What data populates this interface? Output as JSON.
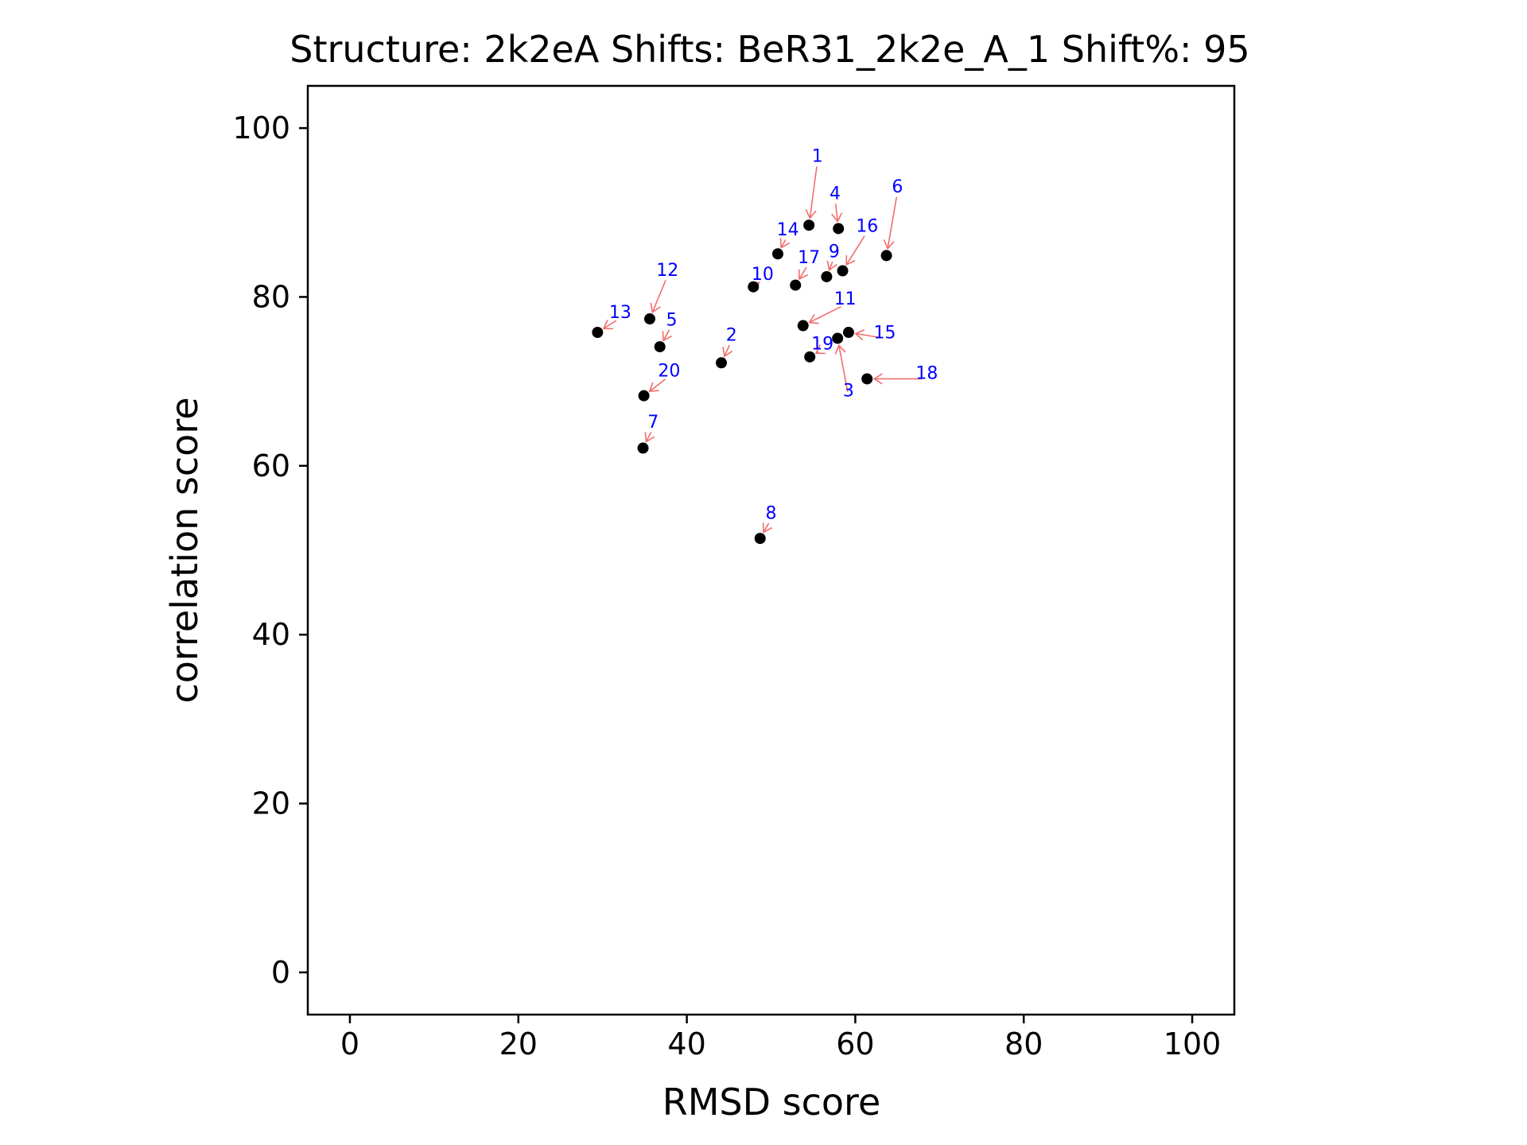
{
  "chart_data": {
    "type": "scatter",
    "title": "Structure: 2k2eA Shifts: BeR31_2k2e_A_1 Shift%: 95",
    "xlabel": "RMSD score",
    "ylabel": "correlation score",
    "xlim": [
      -5,
      105
    ],
    "ylim": [
      -5,
      105
    ],
    "xticks": [
      "0",
      "20",
      "40",
      "60",
      "80",
      "100"
    ],
    "yticks": [
      "0",
      "20",
      "40",
      "60",
      "80",
      "100"
    ],
    "grid": false,
    "marker_color": "#000000",
    "label_color": "#0000ff",
    "arrow_color": "#f26d6d",
    "points": [
      {
        "label": "1",
        "x": 54.5,
        "y": 88.5,
        "lx": 55.5,
        "ly": 96.0
      },
      {
        "label": "2",
        "x": 44.1,
        "y": 72.2,
        "lx": 45.3,
        "ly": 74.8
      },
      {
        "label": "3",
        "x": 57.9,
        "y": 75.1,
        "lx": 59.2,
        "ly": 68.2
      },
      {
        "label": "4",
        "x": 58.0,
        "y": 88.1,
        "lx": 57.6,
        "ly": 91.6
      },
      {
        "label": "5",
        "x": 36.8,
        "y": 74.1,
        "lx": 38.2,
        "ly": 76.6
      },
      {
        "label": "6",
        "x": 63.7,
        "y": 84.9,
        "lx": 65.0,
        "ly": 92.4
      },
      {
        "label": "7",
        "x": 34.8,
        "y": 62.1,
        "lx": 36.0,
        "ly": 64.5
      },
      {
        "label": "8",
        "x": 48.7,
        "y": 51.4,
        "lx": 50.0,
        "ly": 53.7
      },
      {
        "label": "9",
        "x": 56.6,
        "y": 82.4,
        "lx": 57.5,
        "ly": 84.7
      },
      {
        "label": "10",
        "x": 47.9,
        "y": 81.2,
        "lx": 49.0,
        "ly": 82.0
      },
      {
        "label": "11",
        "x": 53.8,
        "y": 76.6,
        "lx": 58.8,
        "ly": 79.1
      },
      {
        "label": "12",
        "x": 35.6,
        "y": 77.4,
        "lx": 37.7,
        "ly": 82.5
      },
      {
        "label": "13",
        "x": 29.4,
        "y": 75.8,
        "lx": 32.1,
        "ly": 77.5
      },
      {
        "label": "14",
        "x": 50.8,
        "y": 85.1,
        "lx": 52.0,
        "ly": 87.3
      },
      {
        "label": "15",
        "x": 59.2,
        "y": 75.8,
        "lx": 63.5,
        "ly": 75.1
      },
      {
        "label": "16",
        "x": 58.5,
        "y": 83.1,
        "lx": 61.4,
        "ly": 87.7
      },
      {
        "label": "17",
        "x": 52.9,
        "y": 81.4,
        "lx": 54.5,
        "ly": 84.0
      },
      {
        "label": "18",
        "x": 61.4,
        "y": 70.3,
        "lx": 68.5,
        "ly": 70.3
      },
      {
        "label": "19",
        "x": 54.6,
        "y": 72.9,
        "lx": 56.1,
        "ly": 73.8
      },
      {
        "label": "20",
        "x": 34.9,
        "y": 68.3,
        "lx": 37.9,
        "ly": 70.6
      }
    ]
  }
}
